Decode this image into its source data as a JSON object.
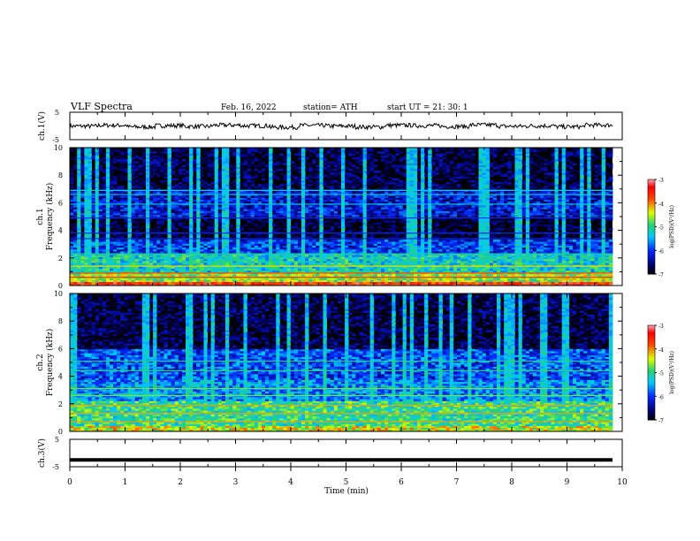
{
  "header": {
    "title": "VLF  Spectra",
    "date": "Feb. 16, 2022",
    "station": "station= ATH",
    "start": "start  UT  =    21: 30: 1"
  },
  "chart_data": [
    {
      "type": "line",
      "name": "ch1-waveform",
      "ylabel": "ch.1(V)",
      "ylim": [
        -5,
        5
      ],
      "yticks": [
        "5",
        "-5"
      ],
      "xlim": [
        0,
        9.8
      ],
      "y": [
        -0.1,
        0.4,
        -0.6,
        0.2,
        -0.3,
        0.5,
        0.1,
        -0.8,
        0.3,
        -0.1,
        -0.6,
        0.4,
        0.2,
        -0.3,
        0.6,
        -0.2,
        0.1,
        -0.5,
        0.5,
        0.2
      ]
    },
    {
      "type": "heatmap",
      "name": "ch1-spectrogram",
      "ylabel": "ch.1\nFrequency (kHz)",
      "ylim": [
        0,
        10
      ],
      "yticks": [
        "0",
        "2",
        "4",
        "6",
        "8",
        "10"
      ],
      "xlim": [
        0,
        9.8
      ],
      "colorbar": {
        "label": "log(PSD)(V²/Hz)",
        "ticks": [
          "-3",
          "-4",
          "-5",
          "-6",
          "-7"
        ],
        "range": [
          -7,
          -3
        ]
      },
      "bands_khz": [
        {
          "from": 0.0,
          "to": 0.3,
          "level": -3.6
        },
        {
          "from": 0.3,
          "to": 1.0,
          "level": -4.6
        },
        {
          "from": 1.0,
          "to": 2.3,
          "level": -5.2
        },
        {
          "from": 2.3,
          "to": 3.4,
          "level": -6.0
        },
        {
          "from": 3.4,
          "to": 5.0,
          "level": -6.9
        },
        {
          "from": 5.0,
          "to": 7.0,
          "level": -6.2
        },
        {
          "from": 7.0,
          "to": 10.0,
          "level": -6.8
        }
      ],
      "lines_khz": [
        0.6,
        0.9,
        1.4,
        2.3,
        3.4,
        3.8,
        4.9,
        5.9,
        6.6,
        6.9
      ]
    },
    {
      "type": "heatmap",
      "name": "ch2-spectrogram",
      "ylabel": "ch.2\nFrequency (kHz)",
      "ylim": [
        0,
        10
      ],
      "yticks": [
        "0",
        "2",
        "4",
        "6",
        "8",
        "10"
      ],
      "xlim": [
        0,
        9.8
      ],
      "colorbar": {
        "label": "log(PSD)(V²/Hz)",
        "ticks": [
          "-3",
          "-4",
          "-5",
          "-6",
          "-7"
        ],
        "range": [
          -7,
          -3
        ]
      },
      "bands_khz": [
        {
          "from": 0.0,
          "to": 0.4,
          "level": -4.4
        },
        {
          "from": 0.4,
          "to": 2.2,
          "level": -5.0
        },
        {
          "from": 2.2,
          "to": 3.8,
          "level": -5.6
        },
        {
          "from": 3.8,
          "to": 6.0,
          "level": -5.9
        },
        {
          "from": 6.0,
          "to": 10.0,
          "level": -6.8
        }
      ],
      "lines_khz": [
        0.7,
        1.3,
        1.9,
        2.6,
        3.1,
        4.4,
        5.1
      ]
    },
    {
      "type": "line",
      "name": "ch3-waveform",
      "ylabel": "ch.3(V)",
      "ylim": [
        -5,
        5
      ],
      "yticks": [
        "5",
        "-5"
      ],
      "xlim": [
        0,
        9.8
      ],
      "y": [
        -2.5,
        -2.5
      ]
    }
  ],
  "xaxis": {
    "label": "Time  (min)",
    "ticks": [
      "0",
      "1",
      "2",
      "3",
      "4",
      "5",
      "6",
      "7",
      "8",
      "9",
      "10"
    ]
  },
  "colors": {
    "black": "#000000",
    "darkblue": "#00007a",
    "blue": "#0033ff",
    "cyan": "#00c8ff",
    "green": "#2fd26a",
    "yellow": "#e6ff00",
    "red": "#ff0000",
    "pink": "#ff9aa0"
  }
}
